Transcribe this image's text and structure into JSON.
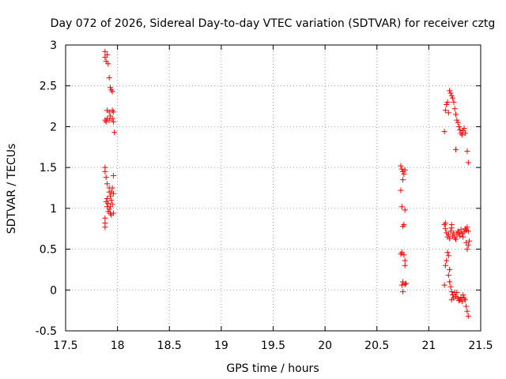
{
  "chart_data": {
    "type": "scatter",
    "title": "Day 072 of 2026, Sidereal Day-to-day VTEC variation (SDTVAR) for receiver cztg",
    "xlabel": "GPS time / hours",
    "ylabel": "SDTVAR / TECUs",
    "xlim": [
      17.5,
      21.5
    ],
    "ylim": [
      -0.5,
      3
    ],
    "xticks": [
      17.5,
      18,
      18.5,
      19,
      19.5,
      20,
      20.5,
      21,
      21.5
    ],
    "xtick_labels": [
      "17.5",
      "18",
      "18.5",
      "19",
      "19.5",
      "20",
      "20.5",
      "21",
      "21.5"
    ],
    "yticks": [
      -0.5,
      0,
      0.5,
      1,
      1.5,
      2,
      2.5,
      3
    ],
    "ytick_labels": [
      "-0.5",
      "0",
      "0.5",
      "1",
      "1.5",
      "2",
      "2.5",
      "3"
    ],
    "grid": "dotted",
    "marker": "+",
    "color": "#ff0000",
    "series": [
      {
        "name": "SDTVAR",
        "points": [
          [
            17.88,
            2.92
          ],
          [
            17.88,
            2.85
          ],
          [
            17.89,
            2.8
          ],
          [
            17.9,
            2.88
          ],
          [
            17.91,
            2.77
          ],
          [
            17.92,
            2.6
          ],
          [
            17.93,
            2.48
          ],
          [
            17.94,
            2.45
          ],
          [
            17.95,
            2.43
          ],
          [
            17.9,
            2.2
          ],
          [
            17.92,
            2.18
          ],
          [
            17.95,
            2.2
          ],
          [
            17.96,
            2.18
          ],
          [
            17.93,
            2.13
          ],
          [
            17.9,
            2.1
          ],
          [
            17.88,
            2.08
          ],
          [
            17.89,
            2.06
          ],
          [
            17.92,
            2.08
          ],
          [
            17.95,
            2.1
          ],
          [
            17.96,
            2.06
          ],
          [
            17.97,
            1.93
          ],
          [
            17.88,
            1.5
          ],
          [
            17.88,
            1.45
          ],
          [
            17.89,
            1.38
          ],
          [
            17.9,
            1.3
          ],
          [
            17.92,
            1.25
          ],
          [
            17.94,
            1.2
          ],
          [
            17.95,
            1.25
          ],
          [
            17.96,
            1.4
          ],
          [
            17.93,
            1.15
          ],
          [
            17.94,
            1.1
          ],
          [
            17.96,
            1.18
          ],
          [
            17.95,
            1.05
          ],
          [
            17.93,
            1.02
          ],
          [
            17.91,
            1.06
          ],
          [
            17.9,
            1.02
          ],
          [
            17.89,
            1.08
          ],
          [
            17.92,
            0.99
          ],
          [
            17.93,
            0.94
          ],
          [
            17.94,
            0.92
          ],
          [
            17.96,
            0.94
          ],
          [
            17.91,
            0.96
          ],
          [
            17.88,
            0.88
          ],
          [
            17.88,
            0.82
          ],
          [
            17.88,
            0.77
          ],
          [
            17.9,
            1.12
          ],
          [
            17.92,
            1.2
          ],
          [
            20.73,
            1.52
          ],
          [
            20.74,
            1.48
          ],
          [
            20.75,
            1.45
          ],
          [
            20.76,
            1.42
          ],
          [
            20.77,
            1.47
          ],
          [
            20.75,
            1.35
          ],
          [
            20.73,
            1.22
          ],
          [
            20.74,
            1.02
          ],
          [
            20.77,
            0.98
          ],
          [
            20.76,
            0.8
          ],
          [
            20.75,
            0.78
          ],
          [
            20.74,
            0.46
          ],
          [
            20.73,
            0.44
          ],
          [
            20.76,
            0.43
          ],
          [
            20.77,
            0.36
          ],
          [
            20.77,
            0.3
          ],
          [
            20.75,
            0.1
          ],
          [
            20.74,
            0.06
          ],
          [
            20.77,
            0.07
          ],
          [
            20.78,
            0.08
          ],
          [
            20.75,
            -0.02
          ],
          [
            21.15,
            1.94
          ],
          [
            21.16,
            2.2
          ],
          [
            21.17,
            2.27
          ],
          [
            21.18,
            2.3
          ],
          [
            21.19,
            2.17
          ],
          [
            21.2,
            2.44
          ],
          [
            21.21,
            2.41
          ],
          [
            21.22,
            2.38
          ],
          [
            21.23,
            2.35
          ],
          [
            21.24,
            2.3
          ],
          [
            21.25,
            2.22
          ],
          [
            21.26,
            2.15
          ],
          [
            21.27,
            2.08
          ],
          [
            21.28,
            2.05
          ],
          [
            21.29,
            2.0
          ],
          [
            21.3,
            1.96
          ],
          [
            21.31,
            1.92
          ],
          [
            21.32,
            1.9
          ],
          [
            21.33,
            1.95
          ],
          [
            21.34,
            1.98
          ],
          [
            21.35,
            1.92
          ],
          [
            21.26,
            1.72
          ],
          [
            21.37,
            1.7
          ],
          [
            21.38,
            1.56
          ],
          [
            21.15,
            0.8
          ],
          [
            21.16,
            0.75
          ],
          [
            21.17,
            0.7
          ],
          [
            21.18,
            0.65
          ],
          [
            21.19,
            0.68
          ],
          [
            21.2,
            0.63
          ],
          [
            21.21,
            0.72
          ],
          [
            21.22,
            0.76
          ],
          [
            21.23,
            0.66
          ],
          [
            21.24,
            0.7
          ],
          [
            21.25,
            0.64
          ],
          [
            21.26,
            0.62
          ],
          [
            21.27,
            0.68
          ],
          [
            21.28,
            0.72
          ],
          [
            21.29,
            0.7
          ],
          [
            21.3,
            0.66
          ],
          [
            21.31,
            0.74
          ],
          [
            21.32,
            0.69
          ],
          [
            21.33,
            0.65
          ],
          [
            21.34,
            0.71
          ],
          [
            21.35,
            0.75
          ],
          [
            21.36,
            0.73
          ],
          [
            21.37,
            0.77
          ],
          [
            21.38,
            0.72
          ],
          [
            21.39,
            0.6
          ],
          [
            21.38,
            0.55
          ],
          [
            21.37,
            0.5
          ],
          [
            21.36,
            0.58
          ],
          [
            21.16,
            0.82
          ],
          [
            21.22,
            0.8
          ],
          [
            21.18,
            0.46
          ],
          [
            21.19,
            0.42
          ],
          [
            21.17,
            0.36
          ],
          [
            21.16,
            0.3
          ],
          [
            21.2,
            0.25
          ],
          [
            21.19,
            0.18
          ],
          [
            21.15,
            0.06
          ],
          [
            21.2,
            0.1
          ],
          [
            21.21,
            0.04
          ],
          [
            21.22,
            -0.02
          ],
          [
            21.23,
            -0.06
          ],
          [
            21.24,
            -0.1
          ],
          [
            21.25,
            -0.03
          ],
          [
            21.26,
            -0.08
          ],
          [
            21.27,
            -0.03
          ],
          [
            21.28,
            -0.1
          ],
          [
            21.29,
            -0.13
          ],
          [
            21.3,
            -0.12
          ],
          [
            21.31,
            -0.09
          ],
          [
            21.32,
            -0.14
          ],
          [
            21.33,
            -0.06
          ],
          [
            21.34,
            -0.1
          ],
          [
            21.35,
            -0.12
          ],
          [
            21.36,
            -0.2
          ],
          [
            21.37,
            -0.26
          ],
          [
            21.38,
            -0.32
          ],
          [
            21.22,
            -0.12
          ]
        ]
      }
    ]
  }
}
